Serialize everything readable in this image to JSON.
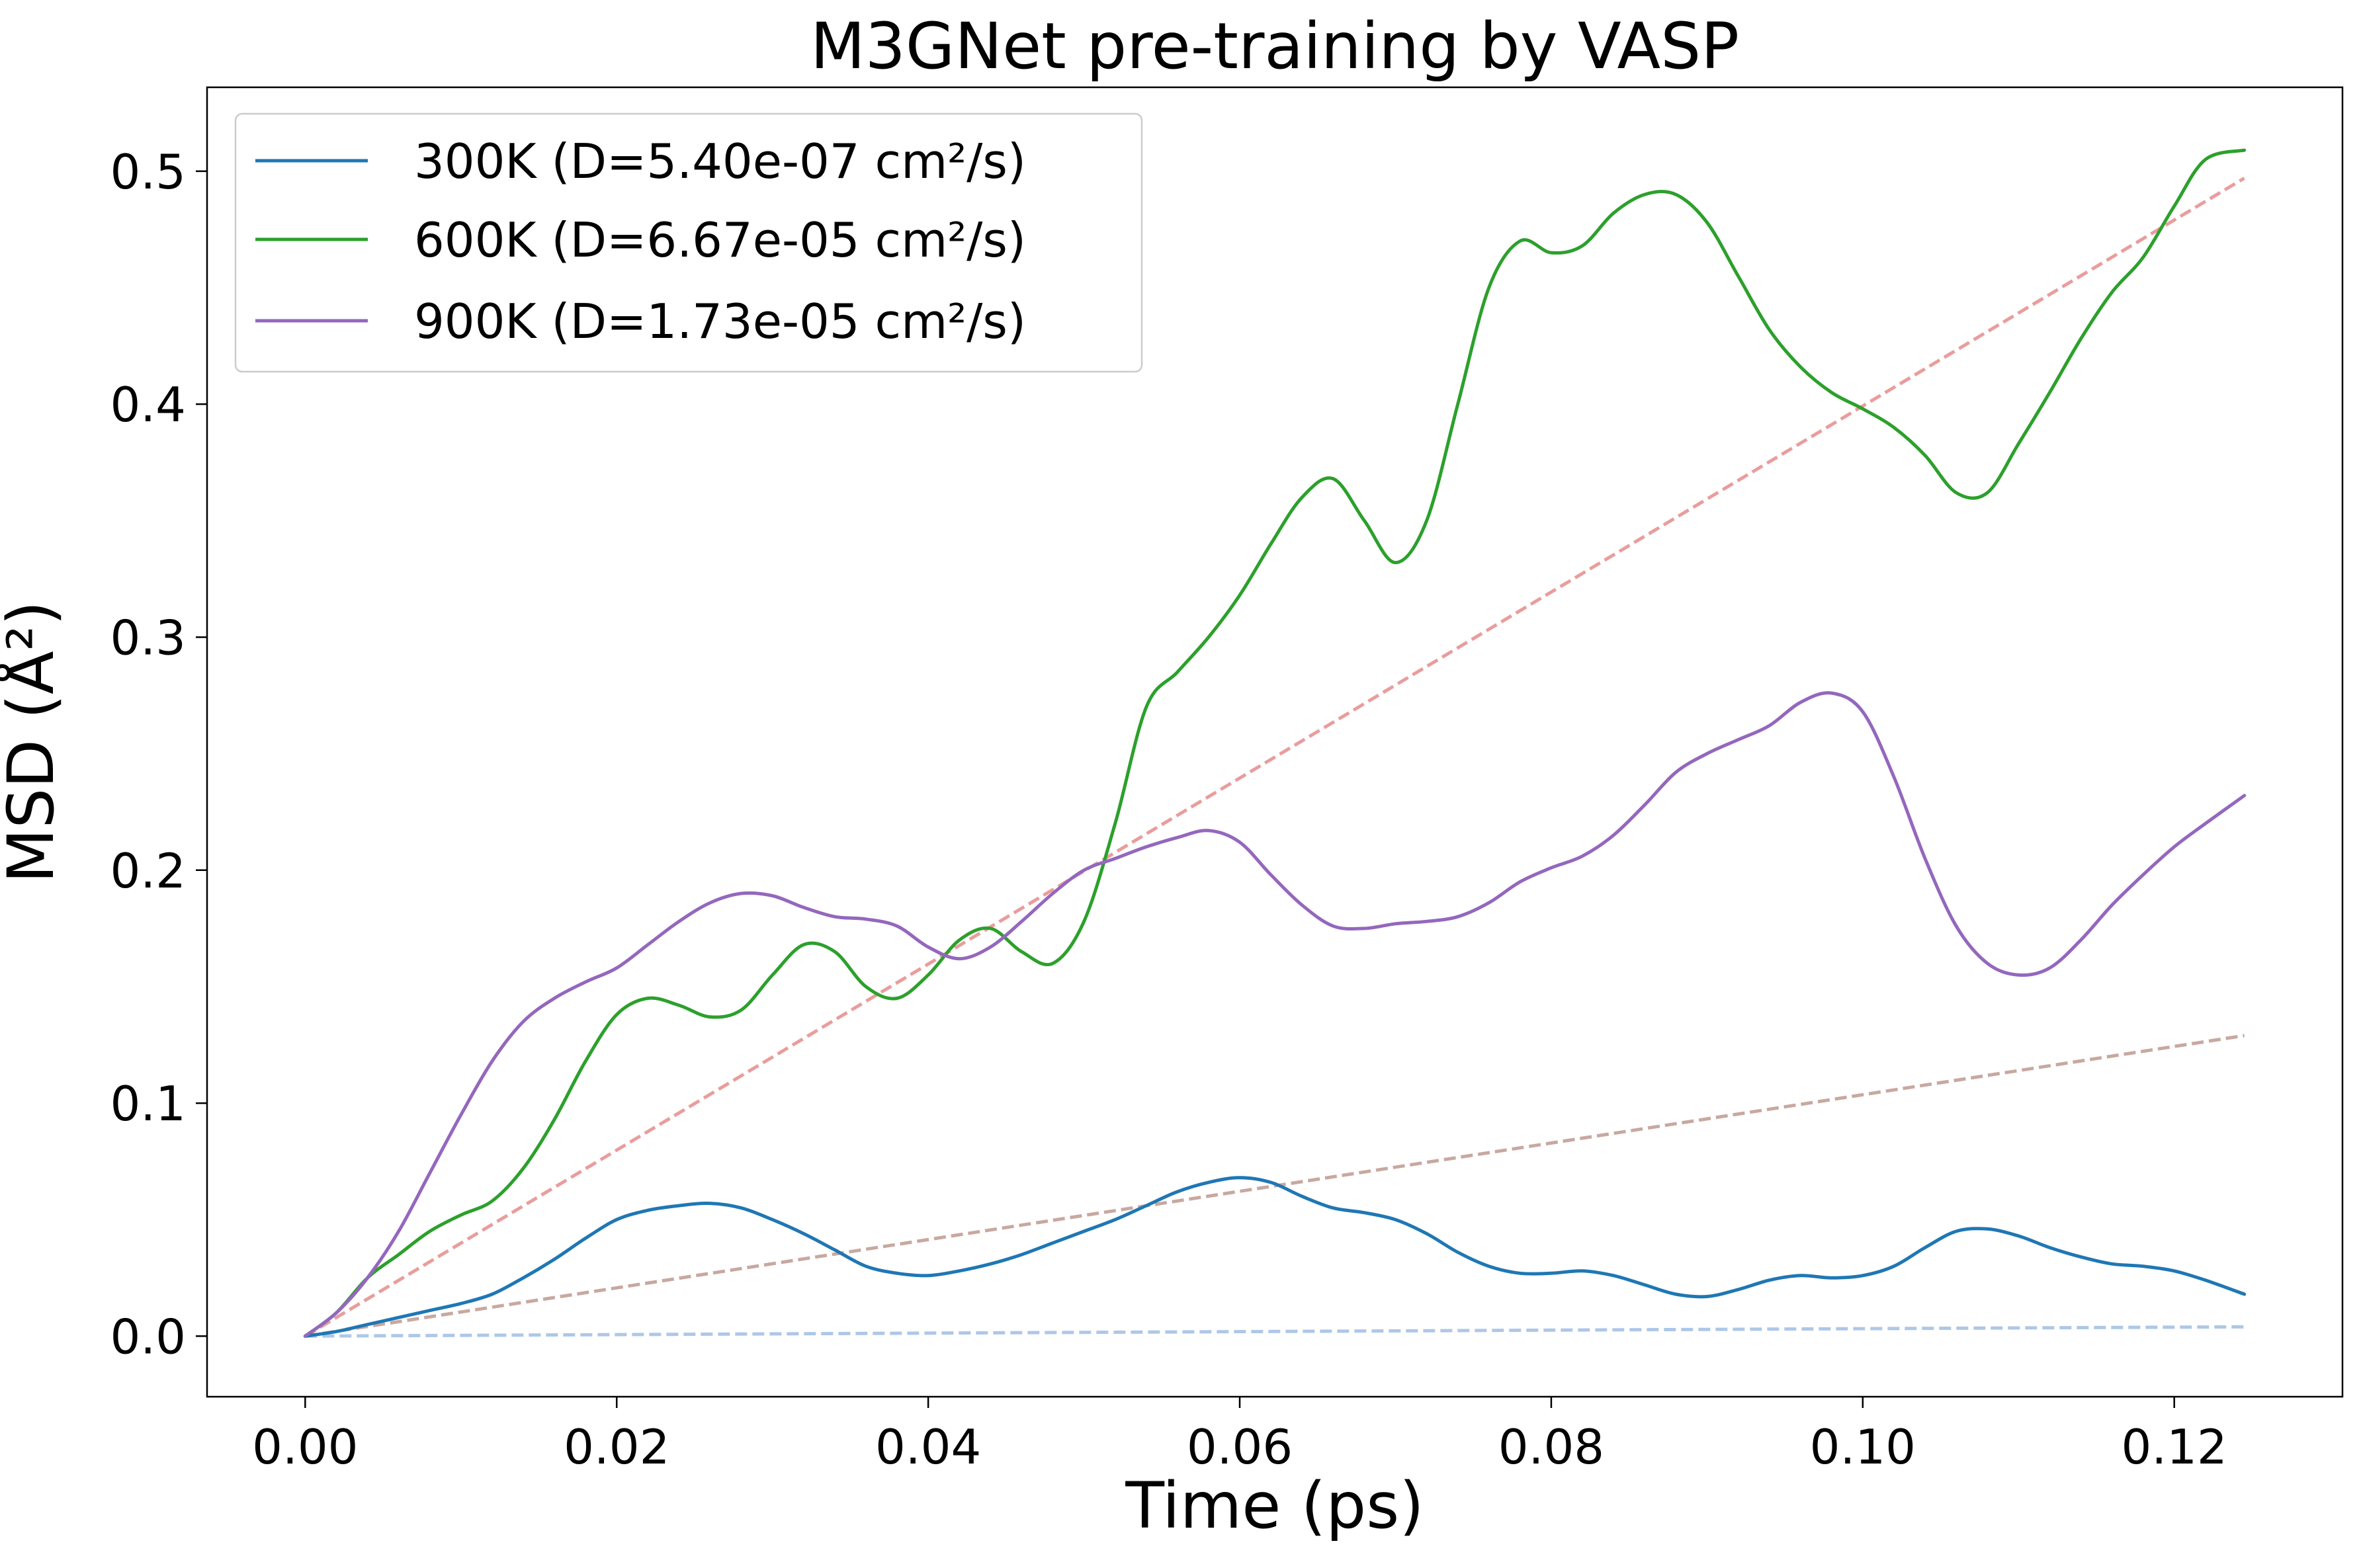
{
  "chart_data": {
    "type": "line",
    "title": "M3GNet pre-training by VASP",
    "xlabel": "Time (ps)",
    "ylabel": "MSD (Å²)",
    "xlim": [
      -0.0063,
      0.1308
    ],
    "ylim": [
      -0.026,
      0.536
    ],
    "x_ticks": [
      0.0,
      0.02,
      0.04,
      0.06,
      0.08,
      0.1,
      0.12
    ],
    "x_tick_labels": [
      "0.00",
      "0.02",
      "0.04",
      "0.06",
      "0.08",
      "0.10",
      "0.12"
    ],
    "y_ticks": [
      0.0,
      0.1,
      0.2,
      0.3,
      0.4,
      0.5
    ],
    "y_tick_labels": [
      "0.0",
      "0.1",
      "0.2",
      "0.3",
      "0.4",
      "0.5"
    ],
    "grid": false,
    "legend_position": "top-left",
    "series": [
      {
        "name": "300K (D=5.40e-07 cm²/s)",
        "color": "#1f77b4",
        "x": [
          0.0,
          0.002,
          0.004,
          0.006,
          0.008,
          0.01,
          0.012,
          0.014,
          0.016,
          0.018,
          0.02,
          0.022,
          0.024,
          0.026,
          0.028,
          0.03,
          0.032,
          0.034,
          0.036,
          0.038,
          0.04,
          0.042,
          0.044,
          0.046,
          0.048,
          0.05,
          0.052,
          0.054,
          0.056,
          0.058,
          0.06,
          0.062,
          0.064,
          0.066,
          0.068,
          0.07,
          0.072,
          0.074,
          0.076,
          0.078,
          0.08,
          0.082,
          0.084,
          0.086,
          0.088,
          0.09,
          0.092,
          0.094,
          0.096,
          0.098,
          0.1,
          0.102,
          0.104,
          0.106,
          0.108,
          0.11,
          0.112,
          0.114,
          0.116,
          0.118,
          0.12,
          0.122,
          0.1245
        ],
        "y": [
          0.0,
          0.002,
          0.005,
          0.008,
          0.011,
          0.014,
          0.018,
          0.025,
          0.033,
          0.042,
          0.05,
          0.054,
          0.056,
          0.057,
          0.055,
          0.05,
          0.044,
          0.037,
          0.03,
          0.027,
          0.026,
          0.028,
          0.031,
          0.035,
          0.04,
          0.045,
          0.05,
          0.056,
          0.062,
          0.066,
          0.068,
          0.066,
          0.06,
          0.055,
          0.053,
          0.05,
          0.044,
          0.036,
          0.03,
          0.027,
          0.027,
          0.028,
          0.026,
          0.022,
          0.018,
          0.017,
          0.02,
          0.024,
          0.026,
          0.025,
          0.026,
          0.03,
          0.038,
          0.045,
          0.046,
          0.043,
          0.038,
          0.034,
          0.031,
          0.03,
          0.028,
          0.024,
          0.018
        ]
      },
      {
        "name": "600K (D=6.67e-05 cm²/s)",
        "color": "#2ca02c",
        "x": [
          0.0,
          0.002,
          0.004,
          0.006,
          0.008,
          0.01,
          0.012,
          0.014,
          0.016,
          0.018,
          0.02,
          0.022,
          0.024,
          0.026,
          0.028,
          0.03,
          0.032,
          0.034,
          0.036,
          0.038,
          0.04,
          0.042,
          0.044,
          0.046,
          0.048,
          0.05,
          0.052,
          0.054,
          0.056,
          0.058,
          0.06,
          0.062,
          0.064,
          0.066,
          0.068,
          0.07,
          0.072,
          0.074,
          0.076,
          0.078,
          0.08,
          0.082,
          0.084,
          0.086,
          0.088,
          0.09,
          0.092,
          0.094,
          0.096,
          0.098,
          0.1,
          0.102,
          0.104,
          0.106,
          0.108,
          0.11,
          0.112,
          0.114,
          0.116,
          0.118,
          0.12,
          0.122,
          0.1245
        ],
        "y": [
          0.0,
          0.01,
          0.025,
          0.035,
          0.045,
          0.052,
          0.058,
          0.072,
          0.093,
          0.118,
          0.138,
          0.145,
          0.142,
          0.137,
          0.14,
          0.155,
          0.168,
          0.165,
          0.15,
          0.145,
          0.155,
          0.17,
          0.175,
          0.165,
          0.16,
          0.178,
          0.22,
          0.27,
          0.285,
          0.3,
          0.318,
          0.34,
          0.36,
          0.368,
          0.35,
          0.332,
          0.35,
          0.4,
          0.45,
          0.47,
          0.465,
          0.468,
          0.482,
          0.49,
          0.49,
          0.478,
          0.455,
          0.432,
          0.416,
          0.405,
          0.398,
          0.39,
          0.378,
          0.362,
          0.362,
          0.383,
          0.405,
          0.428,
          0.448,
          0.463,
          0.485,
          0.505,
          0.509
        ]
      },
      {
        "name": "900K (D=1.73e-05 cm²/s)",
        "color": "#9467bd",
        "x": [
          0.0,
          0.002,
          0.004,
          0.006,
          0.008,
          0.01,
          0.012,
          0.014,
          0.016,
          0.018,
          0.02,
          0.022,
          0.024,
          0.026,
          0.028,
          0.03,
          0.032,
          0.034,
          0.036,
          0.038,
          0.04,
          0.042,
          0.044,
          0.046,
          0.048,
          0.05,
          0.052,
          0.054,
          0.056,
          0.058,
          0.06,
          0.062,
          0.064,
          0.066,
          0.068,
          0.07,
          0.072,
          0.074,
          0.076,
          0.078,
          0.08,
          0.082,
          0.084,
          0.086,
          0.088,
          0.09,
          0.092,
          0.094,
          0.096,
          0.098,
          0.1,
          0.102,
          0.104,
          0.106,
          0.108,
          0.11,
          0.112,
          0.114,
          0.116,
          0.118,
          0.12,
          0.122,
          0.1245
        ],
        "y": [
          0.0,
          0.01,
          0.025,
          0.045,
          0.07,
          0.095,
          0.118,
          0.135,
          0.145,
          0.152,
          0.158,
          0.168,
          0.178,
          0.186,
          0.19,
          0.189,
          0.184,
          0.18,
          0.179,
          0.176,
          0.167,
          0.162,
          0.167,
          0.178,
          0.19,
          0.2,
          0.205,
          0.21,
          0.214,
          0.217,
          0.212,
          0.198,
          0.185,
          0.176,
          0.175,
          0.177,
          0.178,
          0.18,
          0.186,
          0.195,
          0.201,
          0.206,
          0.215,
          0.228,
          0.242,
          0.25,
          0.256,
          0.262,
          0.272,
          0.276,
          0.268,
          0.24,
          0.205,
          0.176,
          0.16,
          0.155,
          0.158,
          0.17,
          0.185,
          0.198,
          0.21,
          0.22,
          0.232
        ]
      }
    ],
    "fit_lines": [
      {
        "color": "#aec7e8",
        "x": [
          0.0,
          0.1245
        ],
        "y": [
          0.0,
          0.004
        ]
      },
      {
        "color": "#e99d9c",
        "x": [
          0.0,
          0.1245
        ],
        "y": [
          0.0,
          0.497
        ]
      },
      {
        "color": "#c8a8a0",
        "x": [
          0.0,
          0.1245
        ],
        "y": [
          0.0,
          0.129
        ]
      }
    ]
  }
}
